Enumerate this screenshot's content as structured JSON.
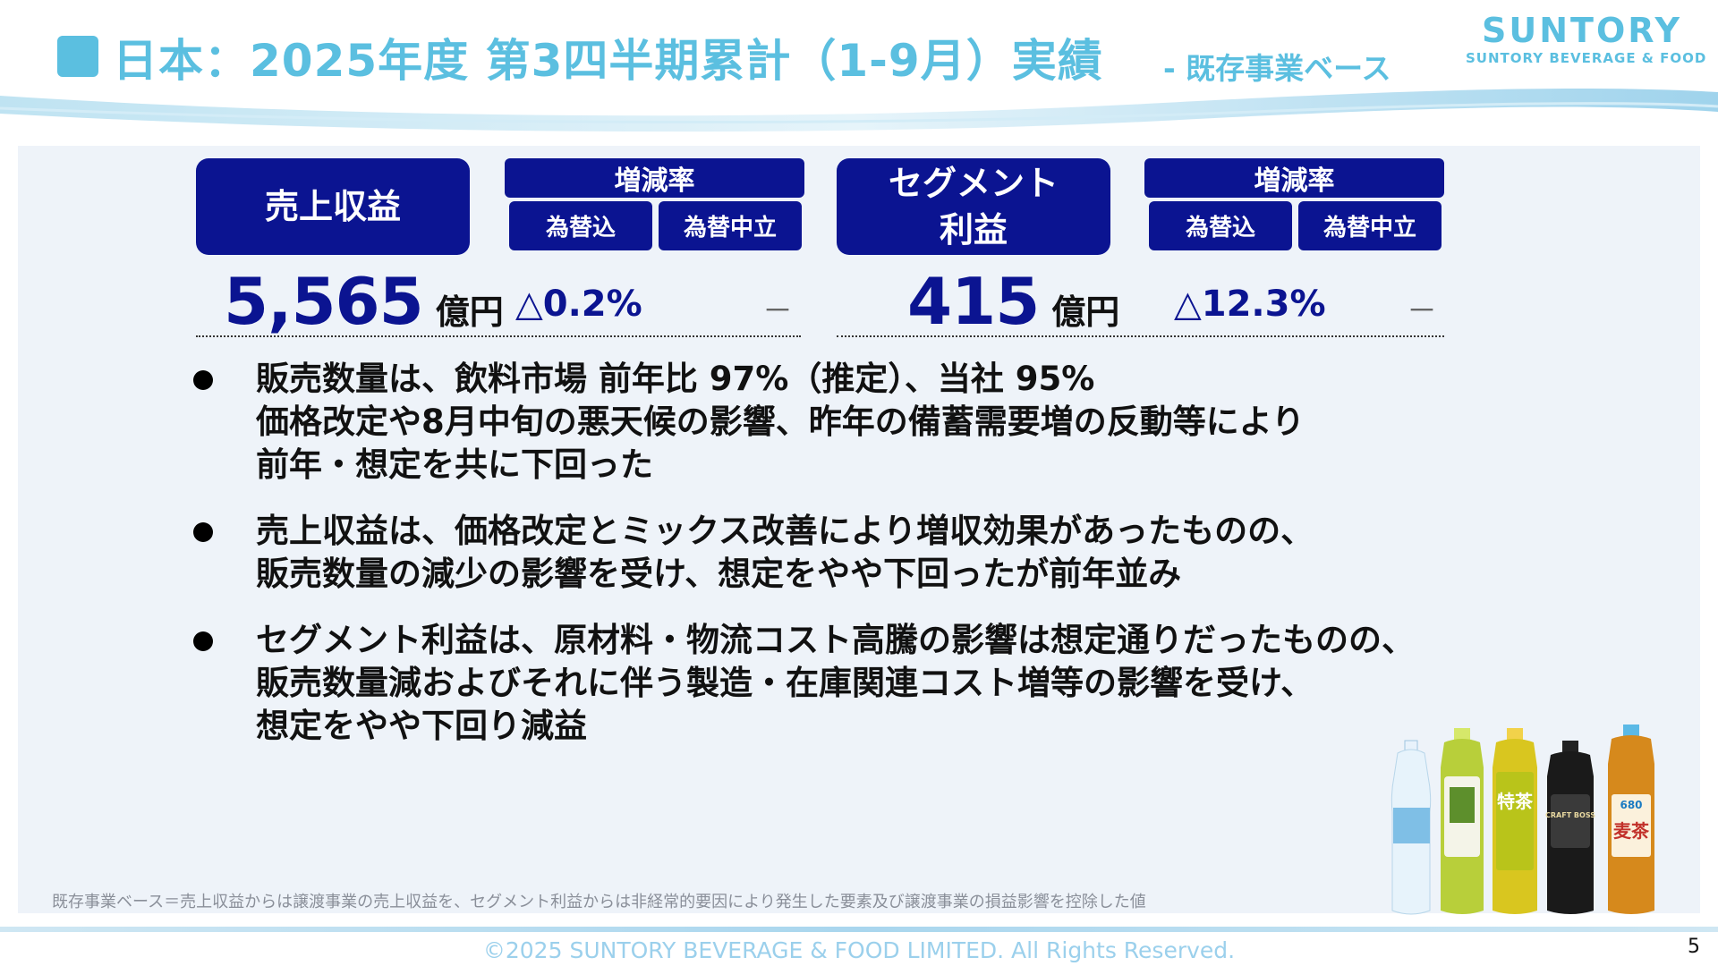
{
  "header": {
    "title": "日本：2025年度 第3四半期累計（1-9月）実績",
    "subtitle": "- 既存事業ベース",
    "logo_main": "SUNTORY",
    "logo_sub": "SUNTORY BEVERAGE & FOOD"
  },
  "metrics": {
    "revenue": {
      "label": "売上収益",
      "value": "5,565",
      "unit": "億円",
      "rate_header": "増減率",
      "col_fx_incl": "為替込",
      "col_fx_neutral": "為替中立",
      "rate_fx_incl": "△0.2%",
      "rate_fx_neutral": "－"
    },
    "segment_profit": {
      "label_line1": "セグメント",
      "label_line2": "利益",
      "value": "415",
      "unit": "億円",
      "rate_header": "増減率",
      "col_fx_incl": "為替込",
      "col_fx_neutral": "為替中立",
      "rate_fx_incl": "△12.3%",
      "rate_fx_neutral": "－"
    }
  },
  "bullets": [
    {
      "lines": [
        "販売数量は、飲料市場 前年比 97%（推定）、当社 95%",
        "価格改定や8月中旬の悪天候の影響、昨年の備蓄需要増の反動等により",
        "前年・想定を共に下回った"
      ]
    },
    {
      "lines": [
        "売上収益は、価格改定とミックス改善により増収効果があったものの、",
        "販売数量の減少の影響を受け、想定をやや下回ったが前年並み"
      ]
    },
    {
      "lines": [
        "セグメント利益は、原材料・物流コスト高騰の影響は想定通りだったものの、",
        "販売数量減およびそれに伴う製造・在庫関連コスト増等の影響を受け、",
        "想定をやや下回り減益"
      ]
    }
  ],
  "footnote": "既存事業ベース＝売上収益からは譲渡事業の売上収益を、セグメント利益からは非経常的要因により発生した要素及び譲渡事業の損益影響を控除した値",
  "product_labels": {
    "tea_label": "特茶",
    "coffee_label": "CRAFT BOSS",
    "barley_label": "麦茶",
    "barley_volume": "680"
  },
  "footer": {
    "copyright": "©2025 SUNTORY BEVERAGE & FOOD LIMITED. All Rights Reserved.",
    "page_number": "5"
  },
  "colors": {
    "accent_light_blue": "#5bbfe0",
    "navy": "#0b1491",
    "panel_bg": "#eef3f9"
  }
}
